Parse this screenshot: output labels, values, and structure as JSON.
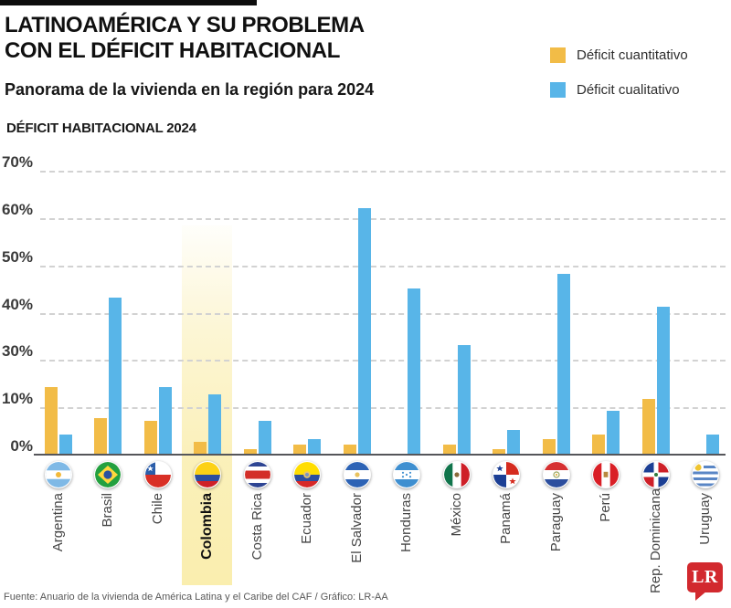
{
  "header": {
    "title_line1": "LATINOAMÉRICA Y SU PROBLEMA",
    "title_line2": "CON EL DÉFICIT HABITACIONAL",
    "subtitle": "Panorama de la vivienda en la región para 2024",
    "chart_heading": "DÉFICIT HABITACIONAL 2024"
  },
  "legend": {
    "items": [
      {
        "label": "Déficit cuantitativo",
        "color": "#F2BC47"
      },
      {
        "label": "Déficit cualitativo",
        "color": "#58B5E8"
      }
    ]
  },
  "chart_data": {
    "type": "bar",
    "title": "DÉFICIT HABITACIONAL 2024",
    "categories": [
      "Argentina",
      "Brasil",
      "Chile",
      "Colombia",
      "Costa Rica",
      "Ecuador",
      "El Salvador",
      "Honduras",
      "México",
      "Panamá",
      "Paraguay",
      "Perú",
      "Rep. Dominicana",
      "Uruguay"
    ],
    "series": [
      {
        "name": "Déficit cuantitativo",
        "color": "#F2BC47",
        "values": [
          18,
          7.5,
          7,
          2.5,
          1,
          2,
          2,
          0,
          2,
          1,
          3,
          4,
          13,
          0
        ]
      },
      {
        "name": "Déficit cualitativo",
        "color": "#58B5E8",
        "values": [
          4,
          43,
          18,
          15,
          7,
          3,
          62,
          45,
          33,
          5,
          48,
          9,
          41,
          4
        ]
      }
    ],
    "y_axis_labels": [
      "70%",
      "60%",
      "50%",
      "40%",
      "30%",
      "10%",
      "0%"
    ],
    "y_tick_values": [
      70,
      60,
      50,
      40,
      30,
      10,
      0
    ],
    "grid": "horizontal-dashed",
    "legend_position": "top-right",
    "highlighted_category": "Colombia"
  },
  "flags": [
    {
      "country": "Argentina",
      "code": "ar",
      "icon": "argentina-flag-icon"
    },
    {
      "country": "Brasil",
      "code": "br",
      "icon": "brasil-flag-icon"
    },
    {
      "country": "Chile",
      "code": "cl",
      "icon": "chile-flag-icon"
    },
    {
      "country": "Colombia",
      "code": "co",
      "icon": "colombia-flag-icon"
    },
    {
      "country": "Costa Rica",
      "code": "cr",
      "icon": "costa-rica-flag-icon"
    },
    {
      "country": "Ecuador",
      "code": "ec",
      "icon": "ecuador-flag-icon"
    },
    {
      "country": "El Salvador",
      "code": "sv",
      "icon": "el-salvador-flag-icon"
    },
    {
      "country": "Honduras",
      "code": "hn",
      "icon": "honduras-flag-icon"
    },
    {
      "country": "México",
      "code": "mx",
      "icon": "mexico-flag-icon"
    },
    {
      "country": "Panamá",
      "code": "pa",
      "icon": "panama-flag-icon"
    },
    {
      "country": "Paraguay",
      "code": "py",
      "icon": "paraguay-flag-icon"
    },
    {
      "country": "Perú",
      "code": "pe",
      "icon": "peru-flag-icon"
    },
    {
      "country": "Rep. Dominicana",
      "code": "do",
      "icon": "dominicana-flag-icon"
    },
    {
      "country": "Uruguay",
      "code": "uy",
      "icon": "uruguay-flag-icon"
    }
  ],
  "footer": {
    "source": "Fuente: Anuario de la vivienda de América Latina y el Caribe del CAF / Gráfico: LR-AA",
    "logo_text": "LR"
  }
}
